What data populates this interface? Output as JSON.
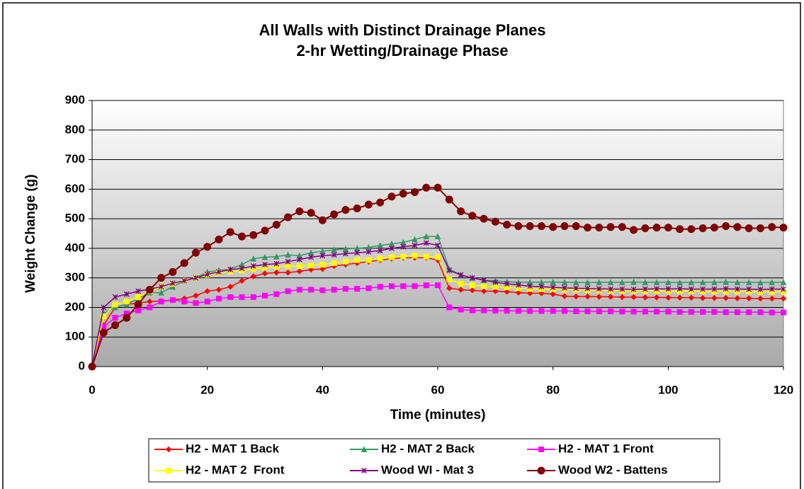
{
  "chart_data": {
    "type": "line",
    "title": "All Walls with Distinct Drainage Planes",
    "subtitle": "2-hr Wetting/Drainage Phase",
    "xlabel": "Time (minutes)",
    "ylabel": "Weight Change (g)",
    "xlim": [
      0,
      120
    ],
    "xticks": [
      0,
      20,
      40,
      60,
      80,
      100,
      120
    ],
    "ylim": [
      0,
      900
    ],
    "yticks": [
      0,
      100,
      200,
      300,
      400,
      500,
      600,
      700,
      800,
      900
    ],
    "grid": true,
    "legend": "bottom",
    "x": [
      0,
      2,
      4,
      6,
      8,
      10,
      12,
      14,
      16,
      18,
      20,
      22,
      24,
      26,
      28,
      30,
      32,
      34,
      36,
      38,
      40,
      42,
      44,
      46,
      48,
      50,
      52,
      54,
      56,
      58,
      60,
      62,
      64,
      66,
      68,
      70,
      72,
      74,
      76,
      78,
      80,
      82,
      84,
      86,
      88,
      90,
      92,
      94,
      96,
      98,
      100,
      102,
      104,
      106,
      108,
      110,
      112,
      114,
      116,
      118,
      120
    ],
    "series": [
      {
        "name": "H2 - MAT 1 Back",
        "color": "#ff0000",
        "marker": "diamond",
        "values": [
          0,
          140,
          200,
          210,
          215,
          220,
          222,
          225,
          230,
          240,
          255,
          260,
          270,
          290,
          305,
          315,
          318,
          318,
          322,
          328,
          330,
          340,
          345,
          350,
          355,
          360,
          365,
          368,
          368,
          368,
          360,
          265,
          260,
          258,
          255,
          255,
          253,
          250,
          248,
          248,
          245,
          238,
          237,
          237,
          236,
          236,
          235,
          235,
          234,
          234,
          233,
          233,
          233,
          232,
          232,
          232,
          231,
          231,
          230,
          230,
          230
        ]
      },
      {
        "name": "H2 - MAT 2 Back",
        "color": "#339966",
        "marker": "triangle",
        "values": [
          0,
          180,
          200,
          210,
          230,
          250,
          250,
          270,
          290,
          300,
          320,
          325,
          330,
          345,
          365,
          370,
          372,
          378,
          375,
          385,
          390,
          395,
          398,
          400,
          403,
          410,
          415,
          420,
          430,
          440,
          440,
          330,
          310,
          300,
          292,
          290,
          287,
          285,
          285,
          285,
          286,
          285,
          285,
          284,
          285,
          285,
          285,
          286,
          285,
          285,
          285,
          284,
          285,
          285,
          285,
          286,
          285,
          285,
          284,
          285,
          285
        ]
      },
      {
        "name": "H2 - MAT 1 Front",
        "color": "#ff00ff",
        "marker": "square",
        "values": [
          0,
          135,
          165,
          180,
          190,
          200,
          220,
          225,
          220,
          215,
          220,
          230,
          235,
          235,
          235,
          240,
          245,
          255,
          260,
          260,
          258,
          260,
          263,
          263,
          265,
          270,
          272,
          272,
          272,
          275,
          275,
          200,
          193,
          190,
          190,
          189,
          189,
          188,
          188,
          188,
          188,
          188,
          187,
          187,
          187,
          187,
          186,
          186,
          186,
          186,
          186,
          185,
          185,
          185,
          185,
          184,
          184,
          184,
          184,
          183,
          183
        ]
      },
      {
        "name": "H2 - MAT 2  Front",
        "color": "#ffff00",
        "marker": "square",
        "values": [
          0,
          170,
          210,
          220,
          235,
          255,
          270,
          280,
          290,
          300,
          310,
          318,
          322,
          325,
          330,
          335,
          338,
          340,
          340,
          342,
          345,
          350,
          355,
          360,
          360,
          365,
          370,
          372,
          375,
          372,
          370,
          295,
          280,
          275,
          272,
          270,
          268,
          265,
          263,
          262,
          262,
          260,
          260,
          258,
          258,
          257,
          257,
          256,
          256,
          256,
          255,
          255,
          255,
          255,
          254,
          254,
          254,
          254,
          253,
          253,
          253
        ]
      },
      {
        "name": "Wood WI - Mat 3",
        "color": "#800080",
        "marker": "star",
        "values": [
          0,
          200,
          235,
          245,
          255,
          262,
          270,
          282,
          290,
          300,
          312,
          320,
          328,
          332,
          340,
          345,
          348,
          355,
          362,
          370,
          375,
          378,
          382,
          385,
          388,
          392,
          400,
          405,
          410,
          418,
          410,
          325,
          310,
          300,
          292,
          285,
          280,
          276,
          272,
          270,
          268,
          266,
          265,
          264,
          263,
          262,
          262,
          261,
          262,
          263,
          263,
          263,
          262,
          262,
          262,
          263,
          262,
          262,
          261,
          262,
          262
        ]
      },
      {
        "name": "Wood W2 - Battens",
        "color": "#800000",
        "marker": "circle",
        "values": [
          0,
          115,
          140,
          165,
          210,
          260,
          300,
          320,
          350,
          385,
          405,
          430,
          455,
          440,
          445,
          460,
          480,
          505,
          525,
          520,
          495,
          515,
          530,
          535,
          548,
          555,
          575,
          585,
          590,
          605,
          605,
          565,
          525,
          510,
          500,
          490,
          480,
          475,
          475,
          475,
          472,
          475,
          475,
          470,
          470,
          472,
          472,
          462,
          468,
          470,
          470,
          465,
          465,
          468,
          470,
          475,
          472,
          468,
          468,
          472,
          470
        ]
      }
    ]
  }
}
